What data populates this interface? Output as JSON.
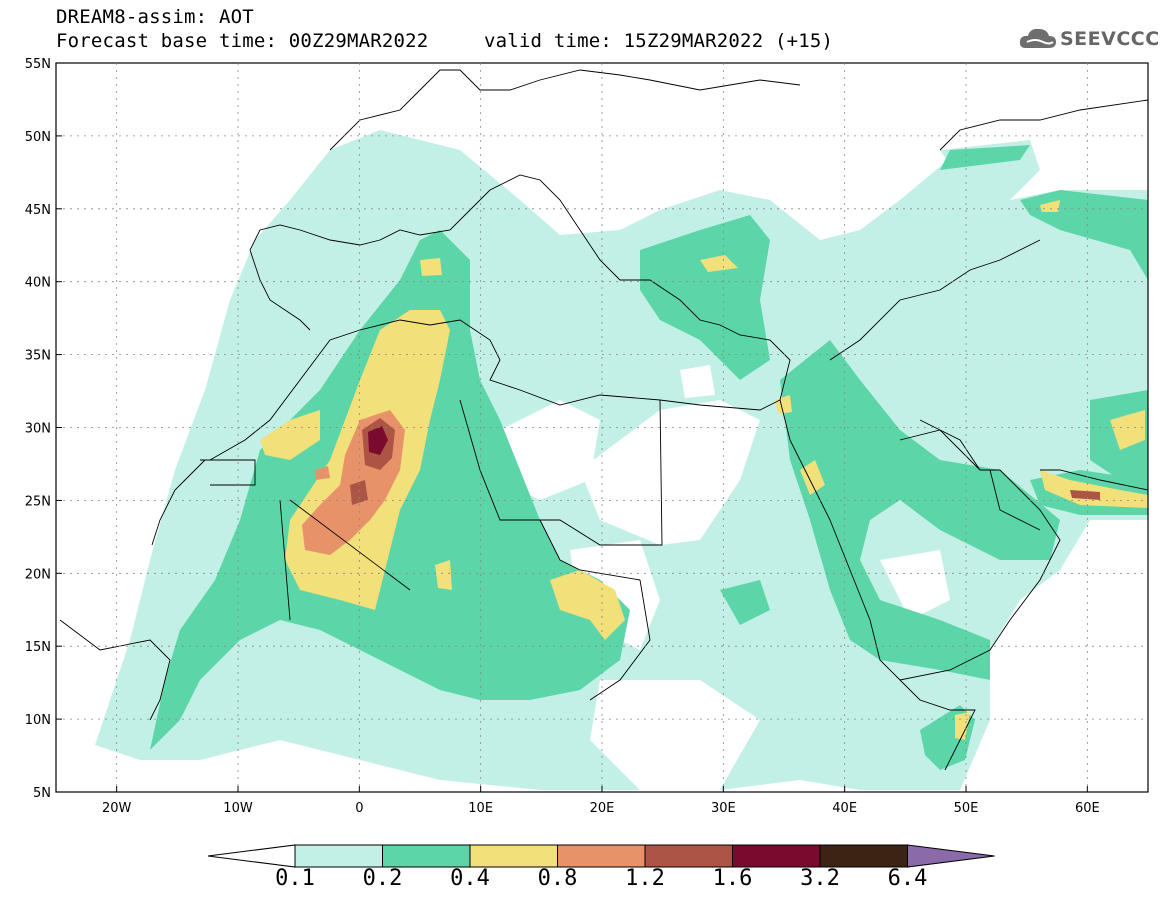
{
  "header": {
    "line1": "DREAM8-assim: AOT",
    "line2": "Forecast base time: 00Z29MAR2022",
    "line3": "valid time: 15Z29MAR2022 (+15)"
  },
  "logo": {
    "text": "SEEVCCC",
    "icon": "cloud-icon"
  },
  "map": {
    "lon_range": [
      -25,
      65
    ],
    "lat_range": [
      5,
      55
    ],
    "lat_ticks": [
      "55N",
      "50N",
      "45N",
      "40N",
      "35N",
      "30N",
      "25N",
      "20N",
      "15N",
      "10N",
      "5N"
    ],
    "lon_ticks": [
      "20W",
      "10W",
      "0",
      "10E",
      "20E",
      "30E",
      "40E",
      "50E",
      "60E"
    ],
    "grid": "dotted"
  },
  "colorbar": {
    "labels": [
      "0.1",
      "0.2",
      "0.4",
      "0.8",
      "1.2",
      "1.6",
      "3.2",
      "6.4"
    ],
    "colors": [
      "#ffffff",
      "#c2f0e6",
      "#5cd6a8",
      "#f2e07a",
      "#e8926a",
      "#ad5545",
      "#7a0a2e",
      "#3b2414",
      "#8a6aa8"
    ]
  }
}
